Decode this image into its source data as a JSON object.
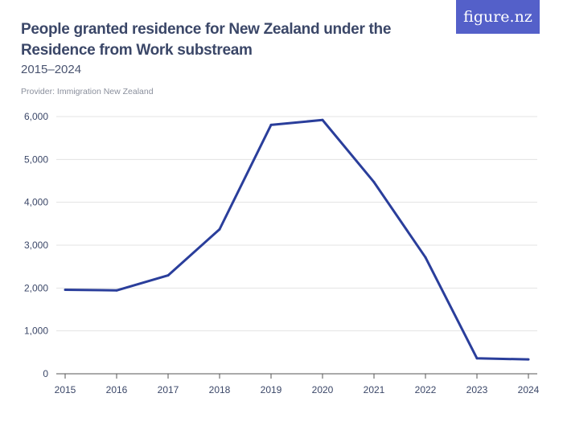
{
  "header": {
    "title": "People granted residence for New Zealand under the Residence from Work substream",
    "subtitle": "2015–2024",
    "provider": "Provider: Immigration New Zealand",
    "logo": "figure.nz"
  },
  "colors": {
    "line": "#2a3e9b",
    "logo_bg": "#5460c9",
    "grid": "#e3e3e3"
  },
  "chart_data": {
    "type": "line",
    "title": "People granted residence for New Zealand under the Residence from Work substream",
    "subtitle": "2015–2024",
    "x": [
      "2015",
      "2016",
      "2017",
      "2018",
      "2019",
      "2020",
      "2021",
      "2022",
      "2023",
      "2024"
    ],
    "series": [
      {
        "values": [
          1960,
          1945,
          2295,
          3370,
          5805,
          5920,
          4470,
          2715,
          360,
          335
        ]
      }
    ],
    "ylim": [
      0,
      6000
    ],
    "yticks": [
      0,
      1000,
      2000,
      3000,
      4000,
      5000,
      6000
    ],
    "ytick_labels": [
      "0",
      "1,000",
      "2,000",
      "3,000",
      "4,000",
      "5,000",
      "6,000"
    ],
    "grid": true,
    "legend": "none"
  }
}
